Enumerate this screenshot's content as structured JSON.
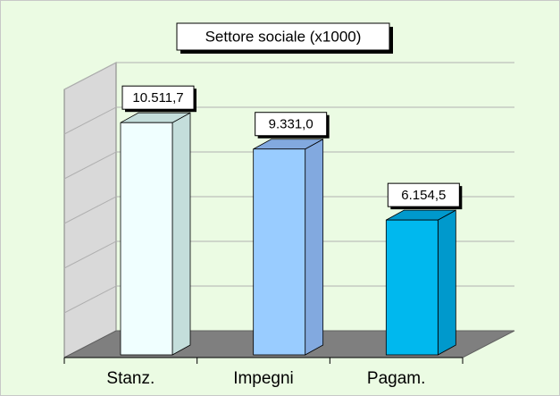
{
  "chart_data": {
    "type": "bar3d",
    "title": "Settore sociale (x1000)",
    "categories": [
      "Stanz.",
      "Impegni",
      "Pagam."
    ],
    "values": [
      10511.7,
      9331.0,
      6154.5
    ],
    "value_labels": [
      "10.511,7",
      "9.331,0",
      "6.154,5"
    ],
    "colors": [
      "#f0ffff",
      "#99ccff",
      "#00b8ee"
    ],
    "side_colors": [
      "#c4dedb",
      "#82a9df",
      "#0099cc"
    ],
    "ylim": [
      0,
      12000
    ],
    "yticks": [
      0,
      2000,
      4000,
      6000,
      8000,
      10000,
      12000
    ],
    "grid": true
  }
}
